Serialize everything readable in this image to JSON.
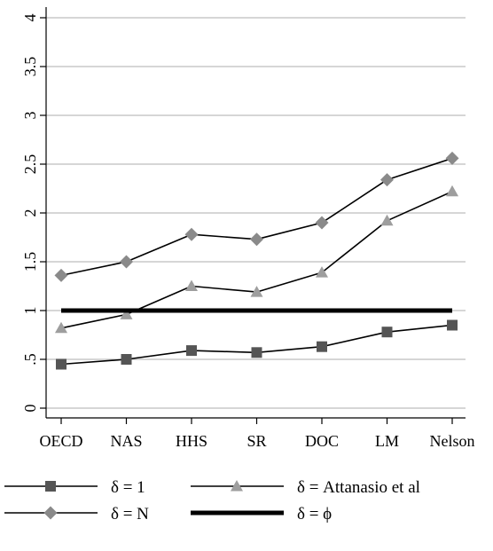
{
  "chart_data": {
    "type": "line",
    "title": "",
    "xlabel": "",
    "ylabel": "",
    "categories": [
      "OECD",
      "NAS",
      "HHS",
      "SR",
      "DOC",
      "LM",
      "Nelson"
    ],
    "y_ticks": [
      {
        "value": 0,
        "label": "0"
      },
      {
        "value": 0.5,
        "label": ".5"
      },
      {
        "value": 1,
        "label": "1"
      },
      {
        "value": 1.5,
        "label": "1.5"
      },
      {
        "value": 2,
        "label": "2"
      },
      {
        "value": 2.5,
        "label": "2.5"
      },
      {
        "value": 3,
        "label": "3"
      },
      {
        "value": 3.5,
        "label": "3.5"
      },
      {
        "value": 4,
        "label": "4"
      }
    ],
    "ylim": [
      -0.1,
      4.1
    ],
    "grid": true,
    "legend_position": "bottom",
    "series": [
      {
        "name": "δ = 1",
        "marker": "square",
        "color": "#555555",
        "values": [
          0.45,
          0.5,
          0.59,
          0.57,
          0.63,
          0.78,
          0.85
        ]
      },
      {
        "name": "δ = Attanasio et al",
        "marker": "triangle",
        "color": "#9e9e9e",
        "values": [
          0.82,
          0.96,
          1.25,
          1.19,
          1.39,
          1.92,
          2.22
        ]
      },
      {
        "name": "δ = N",
        "marker": "diamond",
        "color": "#8a8a8a",
        "values": [
          1.36,
          1.5,
          1.78,
          1.73,
          1.9,
          2.34,
          2.56
        ]
      },
      {
        "name": "δ = ϕ",
        "marker": "none",
        "color": "#000000",
        "values": [
          1,
          1,
          1,
          1,
          1,
          1,
          1
        ]
      }
    ]
  }
}
